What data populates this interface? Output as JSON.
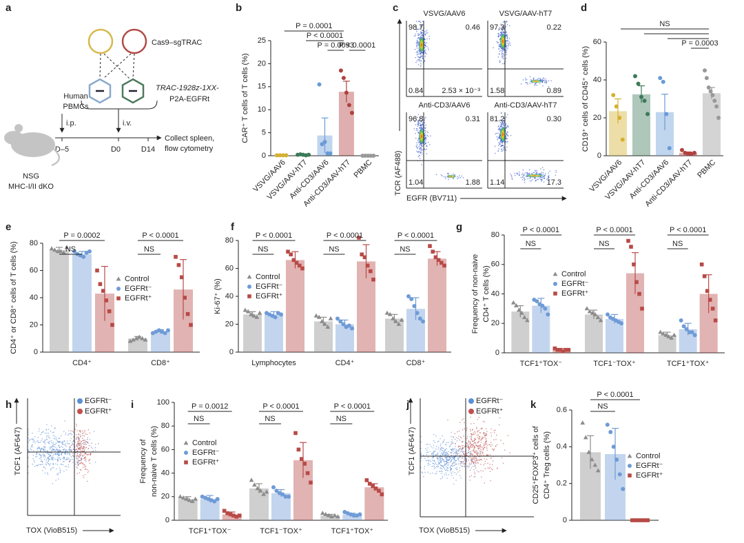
{
  "schematic": {
    "panel": "a",
    "cas9": "Cas9–sgTRAC",
    "construct": [
      "TRAC-1928z-1XX-",
      "P2A-EGFRt"
    ],
    "donor": [
      "Human",
      "PBMCs"
    ],
    "routes": [
      "i.p.",
      "i.v."
    ],
    "days": [
      "D–5",
      "D0",
      "D14"
    ],
    "readout": [
      "Collect spleen,",
      "flow cytometry"
    ],
    "mouse": [
      "NSG",
      "MHC-I/II dKO"
    ]
  },
  "flow_panels": [
    {
      "panel": "c",
      "ylabel": "TCR (AF488)",
      "xlabel": "EGFR (BV711)",
      "plots": [
        {
          "title": "VSVG/AAV6",
          "quadrants": [
            "98.7",
            "0.46",
            "0.84",
            "2.53 × 10⁻³"
          ]
        },
        {
          "title": "VSVG/AAV-hT7",
          "quadrants": [
            "97.3",
            "0.22",
            "1.58",
            "0.89"
          ]
        },
        {
          "title": "Anti-CD3/AAV6",
          "quadrants": [
            "96.8",
            "0.31",
            "1.04",
            "1.88"
          ]
        },
        {
          "title": "Anti-CD3/AAV-hT7",
          "quadrants": [
            "81.2",
            "0.30",
            "1.14",
            "17.3"
          ]
        }
      ]
    },
    {
      "panel": "h",
      "ylabel": "TCF1 (AF647)",
      "xlabel": "TOX (VioB515)",
      "legend": [
        {
          "name": "EGFRt⁻",
          "color": "#5b8fd6"
        },
        {
          "name": "EGFRt⁺",
          "color": "#c0504d"
        }
      ]
    },
    {
      "panel": "j",
      "ylabel": "TCF1 (AF647)",
      "xlabel": "TOX (VioB515)",
      "legend": [
        {
          "name": "EGFRt⁻",
          "color": "#5b8fd6"
        },
        {
          "name": "EGFRt⁺",
          "color": "#c0504d"
        }
      ]
    }
  ],
  "chart_data": [
    {
      "panel": "b",
      "type": "bar",
      "ylabel": "CAR⁺ T cells of T cells (%)",
      "categories": [
        "VSVG/AAV6",
        "VSVG/AAV-hT7",
        "Anti-CD3/AAV6",
        "Anti-CD3/AAV-hT7",
        "PBMC"
      ],
      "values": [
        0.1,
        0.2,
        4.4,
        13.9,
        0
      ],
      "errors": [
        0.05,
        0.1,
        3.8,
        2.3,
        0
      ],
      "points": [
        [
          0.1,
          0.1,
          0.1,
          0.1
        ],
        [
          0.2,
          0.3,
          0.2,
          0.1,
          0.2
        ],
        [
          15.5,
          2.5,
          3,
          0.5,
          0.5
        ],
        [
          18.5,
          16.9,
          13.7,
          11,
          9.3
        ],
        [
          0,
          0,
          0,
          0,
          0
        ]
      ],
      "colors": [
        "#d4b030",
        "#3d7a5a",
        "#6a9ad6",
        "#b0413e",
        "#999999"
      ],
      "ylim": [
        0,
        25
      ],
      "yticks": [
        0,
        5,
        10,
        15,
        20,
        25
      ],
      "annotations": [
        "P = 0.0001",
        "P < 0.0001",
        "P = 0.0093",
        "P < 0.0001"
      ]
    },
    {
      "panel": "d",
      "type": "bar",
      "ylabel": "CD19⁺ cells of CD45⁺ cells (%)",
      "categories": [
        "VSVG/AAV6",
        "VSVG/AAV-hT7",
        "Anti-CD3/AAV6",
        "Anti-CD3/AAV-hT7",
        "PBMC"
      ],
      "values": [
        23.5,
        32.4,
        23,
        1.5,
        33
      ],
      "errors": [
        6.5,
        4.5,
        9.5,
        0.5,
        3
      ],
      "points": [
        [
          32,
          26,
          20,
          8.5
        ],
        [
          42,
          38,
          31,
          29,
          22
        ],
        [
          41,
          39,
          22,
          4
        ],
        [
          3,
          1.5,
          1,
          1,
          1.5
        ],
        [
          45,
          41,
          36,
          34,
          32,
          29,
          26,
          20
        ]
      ],
      "colors": [
        "#d4b030",
        "#3d7a5a",
        "#6a9ad6",
        "#b0413e",
        "#999999"
      ],
      "ylim": [
        0,
        60
      ],
      "yticks": [
        0,
        20,
        40,
        60
      ],
      "annotations": [
        "NS",
        "P = 0.0003"
      ]
    },
    {
      "panel": "e",
      "type": "grouped_bar",
      "ylabel": "CD4⁺ or CD8⁺ cells of T cells (%)",
      "categories": [
        "CD4⁺",
        "CD8⁺"
      ],
      "series": [
        {
          "name": "Control",
          "color": "#8c8c8c",
          "marker": "triangle",
          "values": [
            75,
            10
          ],
          "errors": [
            2,
            1.5
          ],
          "points": [
            [
              76,
              75,
              74,
              74,
              73,
              77
            ],
            [
              8,
              9,
              10,
              11,
              10,
              9
            ]
          ]
        },
        {
          "name": "EGFRt⁻",
          "color": "#6f9bd6",
          "marker": "circle",
          "values": [
            72,
            15
          ],
          "errors": [
            2,
            1.5
          ],
          "points": [
            [
              74,
              72,
              71,
              70,
              73,
              74
            ],
            [
              14,
              15,
              16,
              15,
              14,
              16
            ]
          ]
        },
        {
          "name": "EGFRt⁺",
          "color": "#b84a47",
          "marker": "square",
          "values": [
            43,
            46
          ],
          "errors": [
            20,
            22
          ],
          "points": [
            [
              60,
              50,
              45,
              38,
              30,
              20
            ],
            [
              70,
              64,
              55,
              40,
              28,
              20
            ]
          ]
        }
      ],
      "ylim": [
        0,
        80
      ],
      "yticks": [
        0,
        20,
        40,
        60,
        80
      ],
      "annotations": [
        "P = 0.0002",
        "NS",
        "P < 0.0001",
        "NS"
      ]
    },
    {
      "panel": "f",
      "type": "grouped_bar",
      "ylabel": "Ki-67⁺ (%)",
      "categories": [
        "Lymphocytes",
        "CD4⁺",
        "CD8⁺"
      ],
      "series": [
        {
          "name": "Control",
          "color": "#8c8c8c",
          "marker": "triangle",
          "values": [
            27,
            22,
            24
          ],
          "errors": [
            2,
            3,
            3
          ],
          "points": [
            [
              30,
              29,
              27,
              26,
              25,
              28
            ],
            [
              26,
              25,
              22,
              20,
              18,
              24
            ],
            [
              28,
              27,
              24,
              22,
              20,
              23
            ]
          ]
        },
        {
          "name": "EGFRt⁻",
          "color": "#6f9bd6",
          "marker": "circle",
          "values": [
            27,
            20,
            31
          ],
          "errors": [
            2,
            3,
            8
          ],
          "points": [
            [
              28,
              27,
              26,
              25,
              28,
              27
            ],
            [
              24,
              22,
              20,
              18,
              19,
              17
            ],
            [
              40,
              38,
              33,
              28,
              24,
              22
            ]
          ]
        },
        {
          "name": "EGFRt⁺",
          "color": "#b84a47",
          "marker": "square",
          "values": [
            66,
            65,
            67
          ],
          "errors": [
            6,
            12,
            5
          ],
          "points": [
            [
              72,
              70,
              66,
              64,
              62,
              60
            ],
            [
              82,
              70,
              68,
              62,
              58,
              52
            ],
            [
              76,
              72,
              68,
              66,
              64,
              62
            ]
          ]
        }
      ],
      "ylim": [
        0,
        80
      ],
      "yticks": [
        0,
        20,
        40,
        60,
        80
      ],
      "annotations": [
        "P < 0.0001",
        "NS",
        "P < 0.0001",
        "NS",
        "P < 0.0001",
        "NS"
      ]
    },
    {
      "panel": "g",
      "type": "grouped_bar",
      "ylabel": [
        "Frequency of non-naive",
        "CD4⁺ T cells (%)"
      ],
      "categories": [
        "TCF1⁺TOX⁻",
        "TCF1⁻TOX⁺",
        "TCF1⁺TOX⁺"
      ],
      "series": [
        {
          "name": "Control",
          "color": "#8c8c8c",
          "marker": "triangle",
          "values": [
            28,
            26,
            12
          ],
          "errors": [
            4,
            3,
            2
          ],
          "points": [
            [
              34,
              32,
              29,
              27,
              24,
              22
            ],
            [
              30,
              28,
              27,
              26,
              24,
              22
            ],
            [
              14,
              13,
              12,
              11,
              10,
              12
            ]
          ]
        },
        {
          "name": "EGFRt⁻",
          "color": "#6f9bd6",
          "marker": "circle",
          "values": [
            32,
            23,
            16
          ],
          "errors": [
            5,
            3,
            4
          ],
          "points": [
            [
              36,
              35,
              33,
              32,
              30,
              26
            ],
            [
              26,
              24,
              23,
              22,
              21,
              20
            ],
            [
              22,
              18,
              16,
              14,
              14,
              12
            ]
          ]
        },
        {
          "name": "EGFRt⁺",
          "color": "#b84a47",
          "marker": "square",
          "values": [
            2,
            54,
            40
          ],
          "errors": [
            1,
            14,
            13
          ],
          "points": [
            [
              3,
              2,
              2,
              1,
              2,
              2
            ],
            [
              76,
              72,
              60,
              48,
              40,
              30
            ],
            [
              60,
              52,
              42,
              36,
              30,
              22
            ]
          ]
        }
      ],
      "ylim": [
        0,
        80
      ],
      "yticks": [
        0,
        20,
        40,
        60,
        80
      ],
      "annotations": [
        "P < 0.0001",
        "NS",
        "P < 0.0001",
        "NS",
        "P < 0.0001",
        "NS"
      ]
    },
    {
      "panel": "i",
      "type": "grouped_bar",
      "ylabel": [
        "Frequency of",
        "non-naive T cells (%)"
      ],
      "categories": [
        "TCF1⁺TOX⁻",
        "TCF1⁻TOX⁺",
        "TCF1⁺TOX⁺"
      ],
      "series": [
        {
          "name": "Control",
          "color": "#8c8c8c",
          "marker": "triangle",
          "values": [
            18,
            27,
            4
          ],
          "errors": [
            2,
            4,
            1
          ],
          "points": [
            [
              20,
              19,
              18,
              17,
              16,
              18
            ],
            [
              34,
              30,
              27,
              25,
              22,
              24
            ],
            [
              6,
              5,
              4,
              3,
              4,
              3
            ]
          ]
        },
        {
          "name": "EGFRt⁻",
          "color": "#6f9bd6",
          "marker": "circle",
          "values": [
            18,
            23,
            5
          ],
          "errors": [
            3,
            3,
            1
          ],
          "points": [
            [
              20,
              19,
              18,
              17,
              16,
              18
            ],
            [
              28,
              25,
              23,
              22,
              20,
              20
            ],
            [
              7,
              6,
              5,
              4,
              4,
              5
            ]
          ]
        },
        {
          "name": "EGFRt⁺",
          "color": "#b84a47",
          "marker": "square",
          "values": [
            5,
            51,
            28
          ],
          "errors": [
            2,
            15,
            3
          ],
          "points": [
            [
              8,
              6,
              5,
              4,
              3,
              4
            ],
            [
              74,
              60,
              52,
              48,
              40,
              32
            ],
            [
              34,
              31,
              29,
              27,
              25,
              22
            ]
          ]
        }
      ],
      "ylim": [
        0,
        100
      ],
      "yticks": [
        0,
        20,
        40,
        60,
        80,
        100
      ],
      "annotations": [
        "P = 0.0012",
        "NS",
        "P < 0.0001",
        "NS",
        "P < 0.0001",
        "NS"
      ]
    },
    {
      "panel": "k",
      "type": "grouped_bar",
      "ylabel": [
        "CD25⁺FOXP3⁺ cells of",
        "CD4⁺ Treg cells (%)"
      ],
      "categories": [
        null
      ],
      "series": [
        {
          "name": "Control",
          "color": "#8c8c8c",
          "marker": "triangle",
          "values": [
            0.37
          ],
          "errors": [
            0.09
          ],
          "points": [
            [
              0.53,
              0.45,
              0.37,
              0.33,
              0.3,
              0.27
            ]
          ]
        },
        {
          "name": "EGFRt⁻",
          "color": "#6f9bd6",
          "marker": "circle",
          "values": [
            0.36
          ],
          "errors": [
            0.14
          ],
          "points": [
            [
              0.52,
              0.48,
              0.4,
              0.33,
              0.25,
              0.17
            ]
          ]
        },
        {
          "name": "EGFRt⁺",
          "color": "#b84a47",
          "marker": "square",
          "values": [
            0
          ],
          "errors": [
            0
          ],
          "points": [
            [
              0,
              0,
              0,
              0,
              0,
              0
            ]
          ]
        }
      ],
      "ylim": [
        0,
        0.6
      ],
      "yticks": [
        0,
        0.2,
        0.4,
        0.6
      ],
      "annotations": [
        "P < 0.0001",
        "NS"
      ]
    }
  ]
}
